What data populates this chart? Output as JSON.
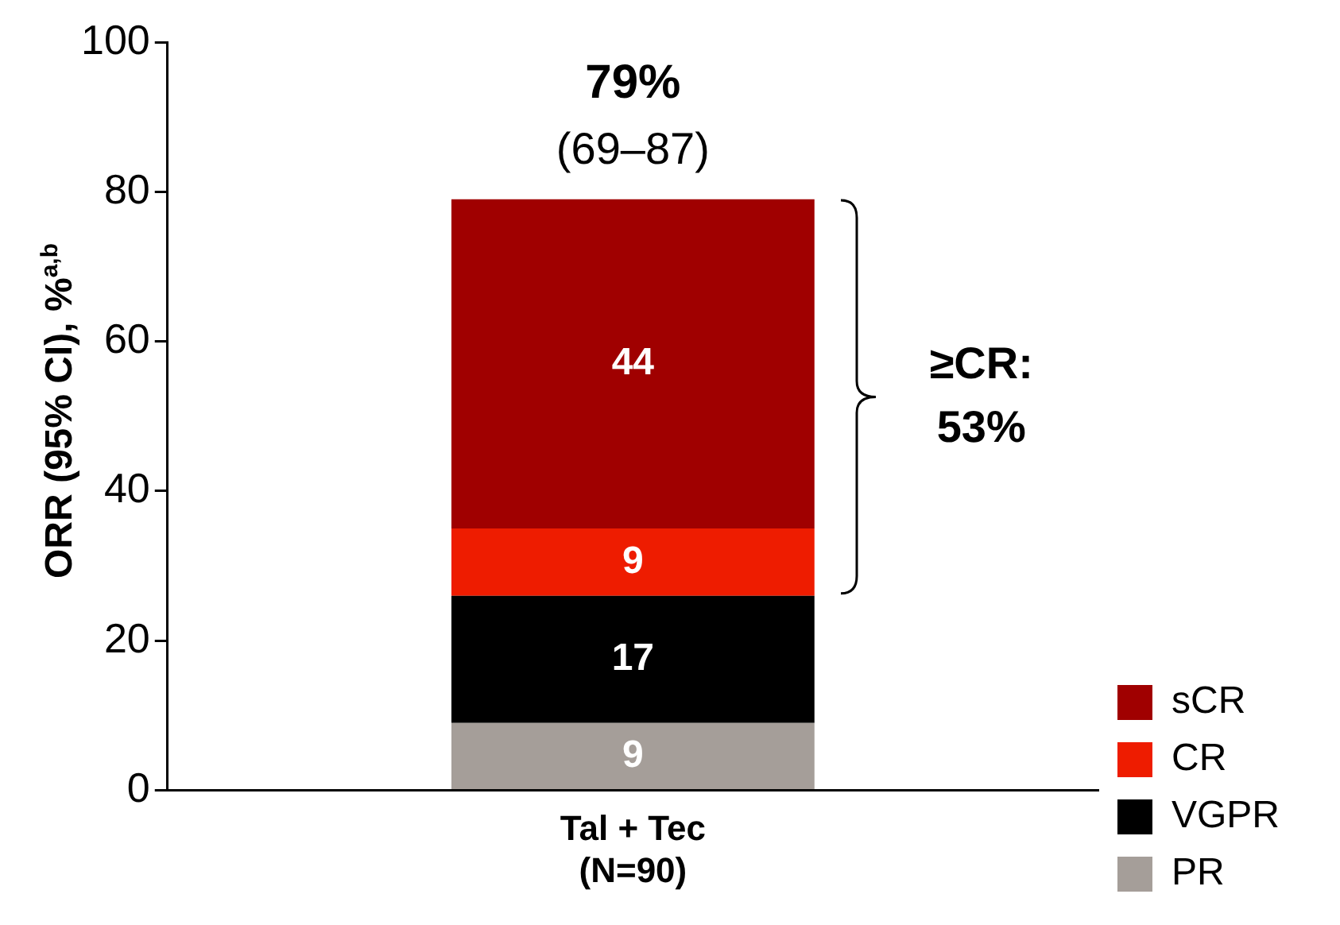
{
  "chart_data": {
    "type": "bar",
    "ylabel": "ORR (95% CI), %$^{a,b}$",
    "categories": [
      "Tal + Tec\n(N=90)"
    ],
    "stacked": true,
    "series": [
      {
        "name": "PR",
        "color": "#a59e99",
        "values": [
          9
        ]
      },
      {
        "name": "VGPR",
        "color": "#000000",
        "values": [
          17
        ]
      },
      {
        "name": "CR",
        "color": "#ee1c00",
        "values": [
          9
        ]
      },
      {
        "name": "sCR",
        "color": "#a00000",
        "values": [
          44
        ]
      }
    ],
    "data_labels": true,
    "totals": [
      "79%"
    ],
    "annotations": [
      "(69–87)",
      "≥CR:\n53%"
    ],
    "ylim": [
      0,
      100
    ],
    "yticks": [
      0,
      20,
      40,
      60,
      80,
      100
    ],
    "grid": false,
    "legend": "right"
  }
}
